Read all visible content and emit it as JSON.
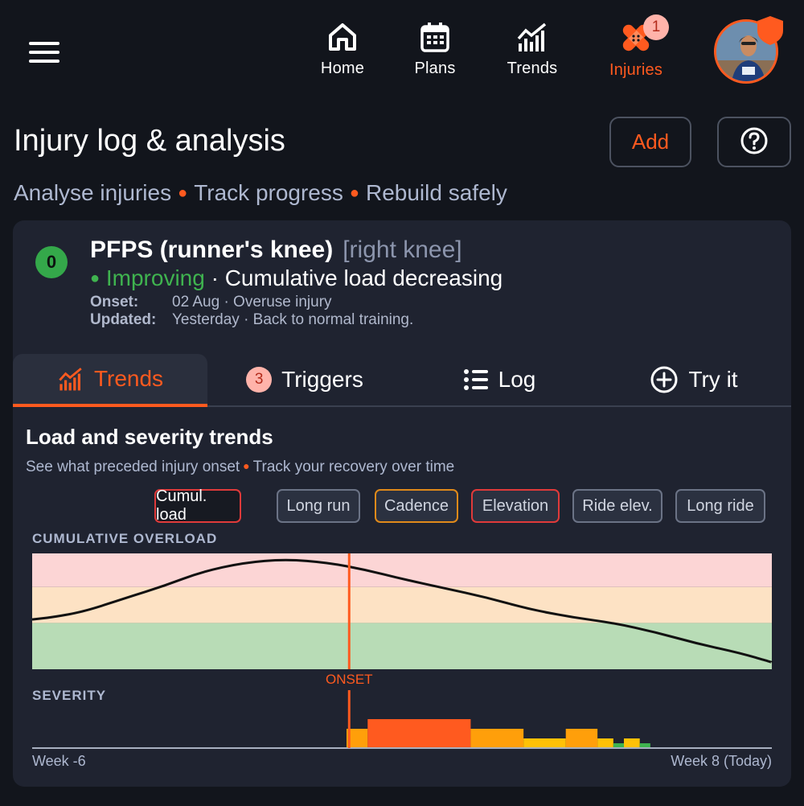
{
  "nav": {
    "items": [
      {
        "label": "Home",
        "icon": "home-icon"
      },
      {
        "label": "Plans",
        "icon": "calendar-icon"
      },
      {
        "label": "Trends",
        "icon": "trend-chart-icon"
      },
      {
        "label": "Injuries",
        "icon": "bandage-icon",
        "badge": "1",
        "active": true
      }
    ]
  },
  "header": {
    "title": "Injury log & analysis",
    "add_label": "Add",
    "subtitle": [
      "Analyse injuries",
      "Track progress",
      "Rebuild safely"
    ]
  },
  "injury": {
    "status_number": "0",
    "name": "PFPS (runner's knee)",
    "location": "[right knee]",
    "status_label": "Improving",
    "status_detail": "· Cumulative load decreasing",
    "onset_label": "Onset:",
    "onset_value": "02 Aug · Overuse injury",
    "updated_label": "Updated:",
    "updated_value": "Yesterday · Back to normal training."
  },
  "tabs": [
    {
      "label": "Trends",
      "icon": "trend-chart-icon",
      "active": true
    },
    {
      "label": "Triggers",
      "badge": "3"
    },
    {
      "label": "Log",
      "icon": "list-icon"
    },
    {
      "label": "Try it",
      "icon": "plus-circle-icon"
    }
  ],
  "trends": {
    "title": "Load and severity trends",
    "subtitle": [
      "See what preceded injury onset",
      "Track your recovery over time"
    ],
    "filters": [
      {
        "label": "Cumul. load",
        "color": "red",
        "selected": true
      },
      {
        "label": "Long run",
        "color": "gray"
      },
      {
        "label": "Cadence",
        "color": "orange"
      },
      {
        "label": "Elevation",
        "color": "red"
      },
      {
        "label": "Ride elev.",
        "color": "gray"
      },
      {
        "label": "Long ride",
        "color": "gray"
      }
    ],
    "overload_label": "CUMULATIVE OVERLOAD",
    "severity_label": "SEVERITY",
    "onset_label": "ONSET",
    "x_start": "Week -6",
    "x_end": "Week 8 (Today)"
  },
  "chart_data": {
    "type": "line",
    "x_range": [
      -6,
      8
    ],
    "onset_week": 0,
    "overload": [
      {
        "week": -6.0,
        "value": 0.43
      },
      {
        "week": -5.6,
        "value": 0.45
      },
      {
        "week": -5.0,
        "value": 0.5
      },
      {
        "week": -4.2,
        "value": 0.62
      },
      {
        "week": -3.5,
        "value": 0.72
      },
      {
        "week": -2.8,
        "value": 0.84
      },
      {
        "week": -2.0,
        "value": 0.92
      },
      {
        "week": -1.2,
        "value": 0.95
      },
      {
        "week": -0.4,
        "value": 0.92
      },
      {
        "week": 0.3,
        "value": 0.86
      },
      {
        "week": 1.0,
        "value": 0.78
      },
      {
        "week": 1.8,
        "value": 0.7
      },
      {
        "week": 2.6,
        "value": 0.62
      },
      {
        "week": 3.4,
        "value": 0.52
      },
      {
        "week": 4.2,
        "value": 0.45
      },
      {
        "week": 5.0,
        "value": 0.4
      },
      {
        "week": 5.8,
        "value": 0.32
      },
      {
        "week": 6.6,
        "value": 0.22
      },
      {
        "week": 7.4,
        "value": 0.14
      },
      {
        "week": 8.0,
        "value": 0.06
      }
    ],
    "zones": [
      {
        "name": "low",
        "from": 0,
        "to": 0.4,
        "color": "#b8dcb6"
      },
      {
        "name": "moderate",
        "from": 0.4,
        "to": 0.71,
        "color": "#fde2c4"
      },
      {
        "name": "high",
        "from": 0.71,
        "to": 1.0,
        "color": "#fcd5d5"
      }
    ],
    "severity": [
      {
        "from": -0.05,
        "to": 0.35,
        "level": 2,
        "color": "#ff9f0a"
      },
      {
        "from": 0.35,
        "to": 2.3,
        "level": 3,
        "color": "#ff5a1f"
      },
      {
        "from": 2.3,
        "to": 3.3,
        "level": 2,
        "color": "#ff9f0a"
      },
      {
        "from": 3.3,
        "to": 4.1,
        "level": 1,
        "color": "#ffc107"
      },
      {
        "from": 4.1,
        "to": 4.7,
        "level": 2,
        "color": "#ff9f0a"
      },
      {
        "from": 4.7,
        "to": 5.0,
        "level": 1,
        "color": "#ffc107"
      },
      {
        "from": 5.0,
        "to": 5.2,
        "level": 0.5,
        "color": "#3fb34f"
      },
      {
        "from": 5.2,
        "to": 5.5,
        "level": 1,
        "color": "#ffc107"
      },
      {
        "from": 5.5,
        "to": 5.7,
        "level": 0.5,
        "color": "#3fb34f"
      }
    ],
    "colors": {
      "line": "#111111",
      "onset": "#ff5a1f"
    }
  }
}
